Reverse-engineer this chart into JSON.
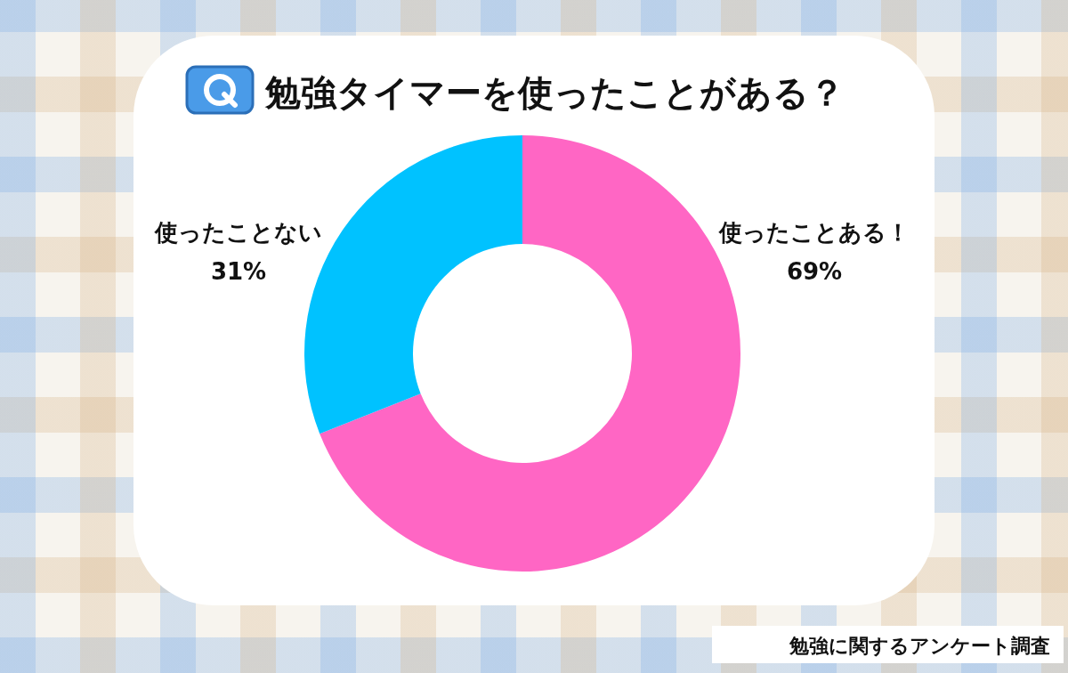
{
  "chart_data": {
    "type": "donut",
    "title": "勉強タイマーを使ったことがある？",
    "categories": [
      "使ったことある！",
      "使ったことない"
    ],
    "values": [
      69,
      31
    ],
    "colors": [
      "#ff66c4",
      "#00c2ff"
    ],
    "value_labels": [
      "69%",
      "31%"
    ],
    "annotations": [
      "勉強に関するアンケート調査"
    ]
  }
}
